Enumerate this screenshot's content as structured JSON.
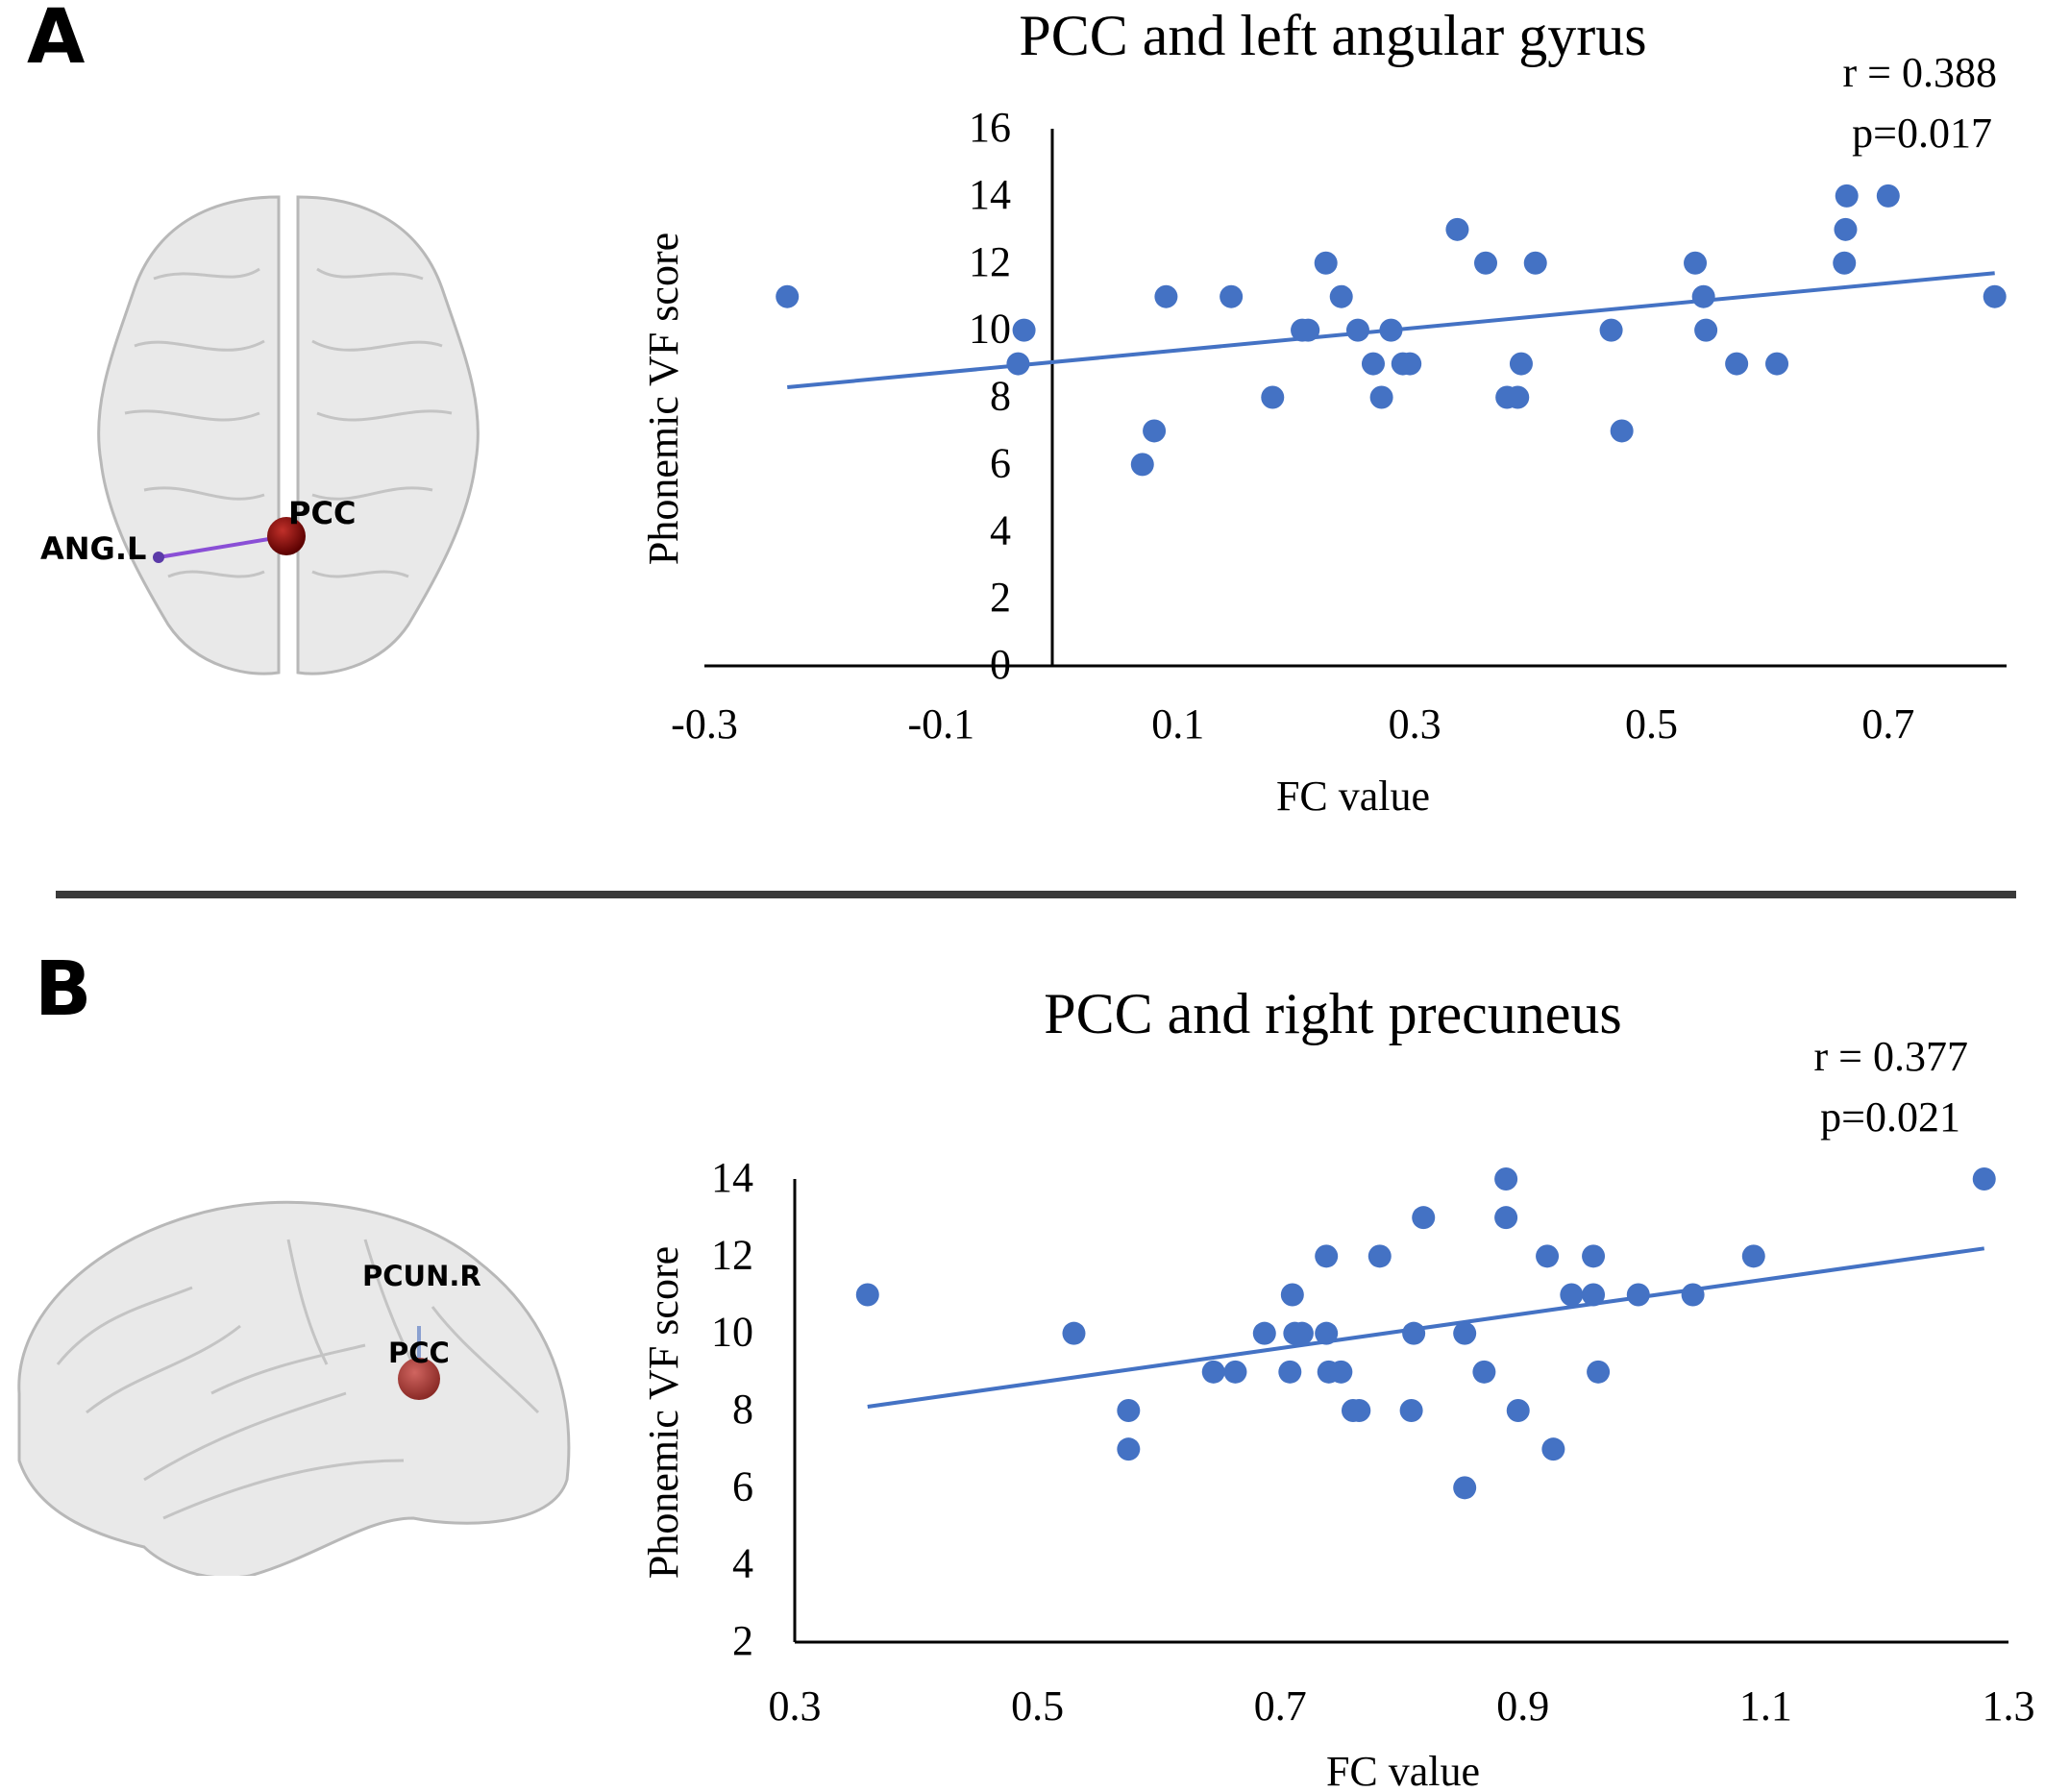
{
  "panels": [
    {
      "letter": "A",
      "brain_labels": [
        "PCC",
        "ANG.L"
      ],
      "connection_color": "#8a4fd6",
      "node_color": "#8b0000"
    },
    {
      "letter": "B",
      "brain_labels": [
        "PCUN.R",
        "PCC"
      ],
      "connection_color": "#8aa0d0",
      "node_color": "#a83a36"
    }
  ],
  "chart_data": [
    {
      "type": "scatter",
      "title": "PCC and left angular gyrus",
      "xlabel": "FC value",
      "ylabel": "Phonemic VF score",
      "xlim": [
        -0.3,
        0.8
      ],
      "ylim": [
        0,
        16
      ],
      "xticks": [
        -0.3,
        -0.1,
        0.1,
        0.3,
        0.5,
        0.7
      ],
      "xtick_labels": [
        "-0.3",
        "-0.1",
        "0.1",
        "0.3",
        "0.5",
        "0.7"
      ],
      "yticks": [
        0,
        2,
        4,
        6,
        8,
        10,
        12,
        14,
        16
      ],
      "ytick_labels": [
        "0",
        "2",
        "4",
        "6",
        "8",
        "10",
        "12",
        "14",
        "16"
      ],
      "stats": [
        "r = 0.388",
        "p=0.017"
      ],
      "point_color": "#4472c4",
      "trendline": {
        "x": [
          -0.23,
          0.79
        ],
        "y": [
          8.3,
          11.7
        ]
      },
      "points": [
        [
          -0.23,
          11
        ],
        [
          -0.03,
          10
        ],
        [
          -0.035,
          9
        ],
        [
          0.07,
          6
        ],
        [
          0.08,
          7
        ],
        [
          0.09,
          11
        ],
        [
          0.145,
          11
        ],
        [
          0.18,
          8
        ],
        [
          0.205,
          10
        ],
        [
          0.21,
          10
        ],
        [
          0.225,
          12
        ],
        [
          0.238,
          11
        ],
        [
          0.252,
          10
        ],
        [
          0.265,
          9
        ],
        [
          0.272,
          8
        ],
        [
          0.28,
          10
        ],
        [
          0.29,
          9
        ],
        [
          0.296,
          9
        ],
        [
          0.336,
          13
        ],
        [
          0.36,
          12
        ],
        [
          0.378,
          8
        ],
        [
          0.387,
          8
        ],
        [
          0.39,
          9
        ],
        [
          0.402,
          12
        ],
        [
          0.466,
          10
        ],
        [
          0.475,
          7
        ],
        [
          0.537,
          12
        ],
        [
          0.544,
          11
        ],
        [
          0.546,
          10
        ],
        [
          0.572,
          9
        ],
        [
          0.606,
          9
        ],
        [
          0.665,
          14
        ],
        [
          0.664,
          13
        ],
        [
          0.663,
          12
        ],
        [
          0.7,
          14
        ],
        [
          0.79,
          11
        ]
      ]
    },
    {
      "type": "scatter",
      "title": "PCC and right precuneus",
      "xlabel": "FC value",
      "ylabel": "Phonemic VF score",
      "xlim": [
        0.3,
        1.3
      ],
      "ylim": [
        2,
        14
      ],
      "xticks": [
        0.3,
        0.5,
        0.7,
        0.9,
        1.1,
        1.3
      ],
      "xtick_labels": [
        "0.3",
        "0.5",
        "0.7",
        "0.9",
        "1.1",
        "1.3"
      ],
      "yticks": [
        2,
        4,
        6,
        8,
        10,
        12,
        14
      ],
      "ytick_labels": [
        "2",
        "4",
        "6",
        "8",
        "10",
        "12",
        "14"
      ],
      "stats": [
        "r = 0.377",
        "p=0.021"
      ],
      "point_color": "#4472c4",
      "trendline": {
        "x": [
          0.36,
          1.28
        ],
        "y": [
          8.1,
          12.2
        ]
      },
      "points": [
        [
          0.36,
          11
        ],
        [
          0.53,
          10
        ],
        [
          0.575,
          8
        ],
        [
          0.575,
          7
        ],
        [
          0.645,
          9
        ],
        [
          0.663,
          9
        ],
        [
          0.687,
          10
        ],
        [
          0.708,
          9
        ],
        [
          0.71,
          11
        ],
        [
          0.712,
          10
        ],
        [
          0.718,
          10
        ],
        [
          0.738,
          12
        ],
        [
          0.738,
          10
        ],
        [
          0.74,
          9
        ],
        [
          0.75,
          9
        ],
        [
          0.76,
          8
        ],
        [
          0.765,
          8
        ],
        [
          0.782,
          12
        ],
        [
          0.808,
          8
        ],
        [
          0.81,
          10
        ],
        [
          0.818,
          13
        ],
        [
          0.852,
          10
        ],
        [
          0.852,
          6
        ],
        [
          0.868,
          9
        ],
        [
          0.886,
          14
        ],
        [
          0.886,
          13
        ],
        [
          0.896,
          8
        ],
        [
          0.92,
          12
        ],
        [
          0.925,
          7
        ],
        [
          0.94,
          11
        ],
        [
          0.958,
          12
        ],
        [
          0.958,
          11
        ],
        [
          0.962,
          9
        ],
        [
          0.995,
          11
        ],
        [
          1.04,
          11
        ],
        [
          1.09,
          12
        ],
        [
          1.28,
          14
        ]
      ]
    }
  ]
}
